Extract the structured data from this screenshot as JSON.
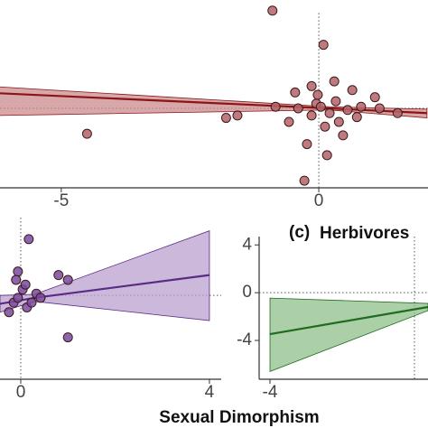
{
  "chart_data": [
    {
      "type": "scatter",
      "xlim": [
        -6.19,
        2.12
      ],
      "ylim": [
        -1,
        1.2
      ],
      "xticks": [
        -5,
        0
      ],
      "color": "#b4636a",
      "line_color": "#8b1414",
      "band_color": "#c98a8c",
      "x": [
        -0.9,
        0.09,
        -4.5,
        -1.58,
        -1.8,
        -0.28,
        -0.46,
        -0.14,
        0.3,
        0.12,
        0.47,
        -0.23,
        0.74,
        1.18,
        1.09,
        -0.84,
        -0.4,
        -0.05,
        0.21,
        0.04,
        -0.14,
        0.33,
        0.56,
        0.82,
        1.53,
        0.16,
        0.39,
        -0.58,
        -0.02,
        0.65
      ],
      "values": [
        1.23,
        0.8,
        -0.32,
        -0.09,
        -0.12,
        -0.91,
        0.2,
        0.28,
        0.34,
        -0.23,
        -0.34,
        -0.45,
        -0.11,
        0,
        0.14,
        0.02,
        0,
        0.06,
        -0.06,
        0.02,
        -0.09,
        0.09,
        -0.02,
        0.02,
        -0.06,
        -0.59,
        -0.17,
        -0.17,
        0.17,
        0.23
      ],
      "fit": {
        "x": [
          -6.2,
          0.2,
          2.1
        ],
        "values": [
          0.19,
          0,
          -0.06
        ],
        "lower": [
          -0.09,
          -0.02,
          -0.12
        ],
        "upper": [
          0.27,
          0.02,
          -0.01
        ]
      }
    },
    {
      "type": "scatter",
      "xlim": [
        -0.44,
        4.25
      ],
      "ylim": [
        -7,
        6.5
      ],
      "xticks": [
        0,
        4
      ],
      "xlabel": "Sexual Dimorphism",
      "color": "#7a4a9e",
      "line_color": "#5b2a86",
      "band_color": "#b9a0cf",
      "x": [
        0.17,
        -0.06,
        0.8,
        1.0,
        0.04,
        -0.15,
        0.13,
        -0.25,
        1.0,
        0.33,
        -0.06,
        0.1,
        0.42,
        -0.1,
        0.23
      ],
      "values": [
        4.7,
        2.0,
        1.7,
        1.3,
        0.5,
        -0.6,
        -1.0,
        -1.4,
        -3.5,
        0.15,
        -0.2,
        0.9,
        -0.2,
        1.3,
        -0.6
      ],
      "fit": {
        "x": [
          -0.44,
          0.3,
          4
        ],
        "values": [
          -0.7,
          -0.2,
          1.7
        ],
        "lower": [
          -1.4,
          -0.5,
          -2.1
        ],
        "upper": [
          0.0,
          0.1,
          5.4
        ]
      }
    },
    {
      "type": "scatter",
      "label": "(c)",
      "title": "Herbivores",
      "xlim": [
        -4.3,
        0.375
      ],
      "ylim": [
        -7.25,
        4.7
      ],
      "xticks": [
        -4
      ],
      "yticks": [
        -4,
        0,
        4
      ],
      "line_color": "#1f6b1f",
      "band_color": "#8fbf8a",
      "fit": {
        "x": [
          -4,
          0.375
        ],
        "values": [
          -3.47,
          -1.2
        ],
        "lower": [
          -6.6,
          -1.5
        ],
        "upper": [
          -0.45,
          -0.9
        ]
      }
    }
  ]
}
